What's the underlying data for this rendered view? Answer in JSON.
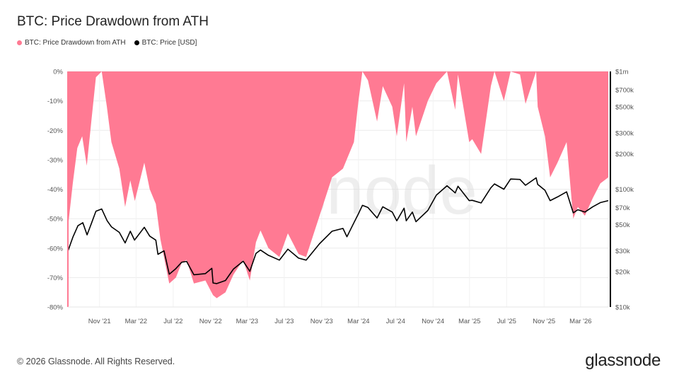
{
  "header": {
    "title": "BTC: Price Drawdown from ATH"
  },
  "legend": {
    "items": [
      {
        "label": "BTC: Price Drawdown from ATH",
        "color": "#ff7a93"
      },
      {
        "label": "BTC: Price [USD]",
        "color": "#000000"
      }
    ]
  },
  "footer": {
    "copyright": "© 2026 Glassnode. All Rights Reserved.",
    "logo": "glassnode"
  },
  "watermark": "glassnode",
  "chart_data": {
    "type": "area",
    "title": "BTC: Price Drawdown from ATH",
    "x_ticks": [
      "Nov '21",
      "Mar '22",
      "Jul '22",
      "Nov '22",
      "Mar '23",
      "Jul '23",
      "Nov '23",
      "Mar '24",
      "Jul '24",
      "Nov '24",
      "Mar '25",
      "Jul '25",
      "Nov '25",
      "Mar '26"
    ],
    "x_range": [
      "2021-07-20",
      "2026-05-31"
    ],
    "y_left": {
      "ticks": [
        "0%",
        "-10%",
        "-20%",
        "-30%",
        "-40%",
        "-50%",
        "-60%",
        "-70%",
        "-80%"
      ],
      "range": [
        -80,
        0
      ]
    },
    "y_right": {
      "scale": "log",
      "ticks": [
        "$1m",
        "$700k",
        "$500k",
        "$300k",
        "$200k",
        "$100k",
        "$70k",
        "$50k",
        "$30k",
        "$20k",
        "$10k"
      ],
      "tick_values": [
        1000000,
        700000,
        500000,
        300000,
        200000,
        100000,
        70000,
        50000,
        30000,
        20000,
        10000
      ],
      "range": [
        10000,
        1000000
      ]
    },
    "series": [
      {
        "name": "BTC: Price Drawdown from ATH",
        "axis": "left",
        "color": "#ff7a93",
        "points": [
          [
            "2021-07-20",
            -53
          ],
          [
            "2021-08-05",
            -38
          ],
          [
            "2021-08-20",
            -26
          ],
          [
            "2021-09-05",
            -22
          ],
          [
            "2021-09-20",
            -32
          ],
          [
            "2021-10-05",
            -17
          ],
          [
            "2021-10-20",
            -2
          ],
          [
            "2021-11-08",
            0
          ],
          [
            "2021-11-25",
            -12
          ],
          [
            "2021-12-10",
            -24
          ],
          [
            "2022-01-05",
            -33
          ],
          [
            "2022-01-24",
            -46
          ],
          [
            "2022-02-10",
            -37
          ],
          [
            "2022-02-25",
            -44
          ],
          [
            "2022-03-28",
            -31
          ],
          [
            "2022-04-15",
            -40
          ],
          [
            "2022-05-05",
            -45
          ],
          [
            "2022-05-20",
            -57
          ],
          [
            "2022-06-18",
            -72
          ],
          [
            "2022-07-10",
            -70
          ],
          [
            "2022-07-29",
            -65
          ],
          [
            "2022-08-14",
            -64
          ],
          [
            "2022-09-07",
            -72
          ],
          [
            "2022-10-15",
            -71
          ],
          [
            "2022-11-09",
            -76
          ],
          [
            "2022-11-21",
            -77
          ],
          [
            "2022-12-20",
            -75
          ],
          [
            "2023-01-15",
            -69
          ],
          [
            "2023-02-16",
            -64
          ],
          [
            "2023-03-10",
            -71
          ],
          [
            "2023-03-30",
            -58
          ],
          [
            "2023-04-14",
            -54
          ],
          [
            "2023-05-10",
            -60
          ],
          [
            "2023-06-15",
            -63
          ],
          [
            "2023-07-13",
            -55
          ],
          [
            "2023-08-17",
            -62
          ],
          [
            "2023-09-11",
            -63
          ],
          [
            "2023-10-25",
            -49
          ],
          [
            "2023-12-05",
            -36
          ],
          [
            "2024-01-10",
            -33
          ],
          [
            "2024-02-15",
            -24
          ],
          [
            "2024-03-01",
            -10
          ],
          [
            "2024-03-14",
            0
          ],
          [
            "2024-04-01",
            -3
          ],
          [
            "2024-05-01",
            -17
          ],
          [
            "2024-05-20",
            -5
          ],
          [
            "2024-06-20",
            -12
          ],
          [
            "2024-07-05",
            -22
          ],
          [
            "2024-07-29",
            -4
          ],
          [
            "2024-08-05",
            -24
          ],
          [
            "2024-08-25",
            -12
          ],
          [
            "2024-09-06",
            -22
          ],
          [
            "2024-10-15",
            -10
          ],
          [
            "2024-11-12",
            -4
          ],
          [
            "2024-12-17",
            0
          ],
          [
            "2025-01-13",
            -13
          ],
          [
            "2025-01-22",
            -1
          ],
          [
            "2025-02-28",
            -24
          ],
          [
            "2025-03-10",
            -23
          ],
          [
            "2025-04-08",
            -28
          ],
          [
            "2025-05-10",
            -5
          ],
          [
            "2025-05-22",
            0
          ],
          [
            "2025-06-22",
            -10
          ],
          [
            "2025-07-14",
            0
          ],
          [
            "2025-08-14",
            -1
          ],
          [
            "2025-09-01",
            -11
          ],
          [
            "2025-10-06",
            0
          ],
          [
            "2025-10-11",
            -12
          ],
          [
            "2025-11-04",
            -22
          ],
          [
            "2025-11-21",
            -36
          ],
          [
            "2025-12-15",
            -31
          ],
          [
            "2026-01-14",
            -24
          ],
          [
            "2026-02-05",
            -50
          ],
          [
            "2026-02-20",
            -46
          ],
          [
            "2026-03-15",
            -49
          ],
          [
            "2026-04-10",
            -43
          ],
          [
            "2026-05-05",
            -38
          ],
          [
            "2026-05-31",
            -36
          ]
        ]
      },
      {
        "name": "BTC: Price [USD]",
        "axis": "right",
        "color": "#000000",
        "points": [
          [
            "2021-07-20",
            29800
          ],
          [
            "2021-08-05",
            39000
          ],
          [
            "2021-08-22",
            49000
          ],
          [
            "2021-09-07",
            52000
          ],
          [
            "2021-09-21",
            41000
          ],
          [
            "2021-10-05",
            51000
          ],
          [
            "2021-10-20",
            65000
          ],
          [
            "2021-11-08",
            68000
          ],
          [
            "2021-11-26",
            54000
          ],
          [
            "2021-12-10",
            48000
          ],
          [
            "2022-01-05",
            43000
          ],
          [
            "2022-01-24",
            35000
          ],
          [
            "2022-02-10",
            44000
          ],
          [
            "2022-02-24",
            37000
          ],
          [
            "2022-03-28",
            47500
          ],
          [
            "2022-04-15",
            40000
          ],
          [
            "2022-05-05",
            37000
          ],
          [
            "2022-05-12",
            28000
          ],
          [
            "2022-06-01",
            30000
          ],
          [
            "2022-06-18",
            19000
          ],
          [
            "2022-07-08",
            21000
          ],
          [
            "2022-07-29",
            24000
          ],
          [
            "2022-08-14",
            24400
          ],
          [
            "2022-09-07",
            18800
          ],
          [
            "2022-10-15",
            19200
          ],
          [
            "2022-11-05",
            21300
          ],
          [
            "2022-11-09",
            16000
          ],
          [
            "2022-11-21",
            15800
          ],
          [
            "2022-12-20",
            16800
          ],
          [
            "2023-01-15",
            21000
          ],
          [
            "2023-02-16",
            24500
          ],
          [
            "2023-03-10",
            20100
          ],
          [
            "2023-03-30",
            28500
          ],
          [
            "2023-04-14",
            30500
          ],
          [
            "2023-05-10",
            27500
          ],
          [
            "2023-06-15",
            25000
          ],
          [
            "2023-07-13",
            31000
          ],
          [
            "2023-08-17",
            26000
          ],
          [
            "2023-09-11",
            25000
          ],
          [
            "2023-10-25",
            34500
          ],
          [
            "2023-12-05",
            44000
          ],
          [
            "2024-01-10",
            46500
          ],
          [
            "2024-01-23",
            39500
          ],
          [
            "2024-02-15",
            52000
          ],
          [
            "2024-03-01",
            62000
          ],
          [
            "2024-03-14",
            73000
          ],
          [
            "2024-04-01",
            70000
          ],
          [
            "2024-05-01",
            57000
          ],
          [
            "2024-05-20",
            71000
          ],
          [
            "2024-06-20",
            64000
          ],
          [
            "2024-07-05",
            54000
          ],
          [
            "2024-07-29",
            69000
          ],
          [
            "2024-08-05",
            54000
          ],
          [
            "2024-08-25",
            64000
          ],
          [
            "2024-09-06",
            53000
          ],
          [
            "2024-10-15",
            66000
          ],
          [
            "2024-11-12",
            89000
          ],
          [
            "2024-12-17",
            107000
          ],
          [
            "2025-01-13",
            93000
          ],
          [
            "2025-01-22",
            106000
          ],
          [
            "2025-02-28",
            80000
          ],
          [
            "2025-03-10",
            80500
          ],
          [
            "2025-04-08",
            76500
          ],
          [
            "2025-05-10",
            103000
          ],
          [
            "2025-05-22",
            111000
          ],
          [
            "2025-06-22",
            100000
          ],
          [
            "2025-07-14",
            122000
          ],
          [
            "2025-08-14",
            121000
          ],
          [
            "2025-09-01",
            108000
          ],
          [
            "2025-10-06",
            125000
          ],
          [
            "2025-10-11",
            110000
          ],
          [
            "2025-11-04",
            98000
          ],
          [
            "2025-11-21",
            80000
          ],
          [
            "2025-12-15",
            86000
          ],
          [
            "2026-01-14",
            95000
          ],
          [
            "2026-02-05",
            63000
          ],
          [
            "2026-02-20",
            67000
          ],
          [
            "2026-03-15",
            64000
          ],
          [
            "2026-04-10",
            71000
          ],
          [
            "2026-05-05",
            77000
          ],
          [
            "2026-05-31",
            80000
          ]
        ]
      }
    ]
  }
}
